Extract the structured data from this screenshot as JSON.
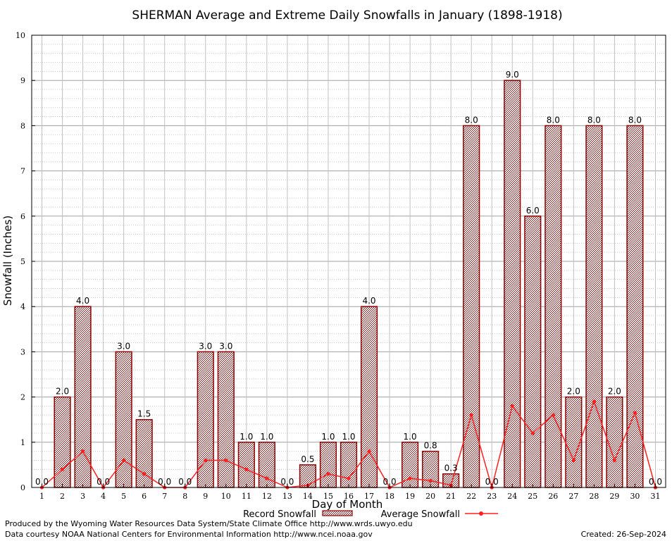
{
  "chart_data": {
    "type": "bar",
    "title": "SHERMAN Average and Extreme Daily Snowfalls in January (1898-1918)",
    "xlabel": "Day of Month",
    "ylabel": "Snowfall (Inches)",
    "ylim": [
      0,
      10
    ],
    "yticks": [
      "0",
      "1",
      "2",
      "3",
      "4",
      "5",
      "6",
      "7",
      "8",
      "9",
      "10"
    ],
    "categories": [
      "1",
      "2",
      "3",
      "4",
      "5",
      "6",
      "7",
      "8",
      "9",
      "10",
      "11",
      "12",
      "13",
      "14",
      "15",
      "16",
      "17",
      "18",
      "19",
      "20",
      "21",
      "22",
      "23",
      "24",
      "25",
      "26",
      "27",
      "28",
      "29",
      "30",
      "31"
    ],
    "series": [
      {
        "name": "Record Snowfall",
        "kind": "bar",
        "color": "#8b0000",
        "values": [
          0.0,
          2.0,
          4.0,
          0.0,
          3.0,
          1.5,
          0.0,
          0.0,
          3.0,
          3.0,
          1.0,
          1.0,
          0.0,
          0.5,
          1.0,
          1.0,
          4.0,
          0.0,
          1.0,
          0.8,
          0.3,
          8.0,
          0.0,
          9.0,
          6.0,
          8.0,
          2.0,
          8.0,
          2.0,
          8.0,
          0.0
        ],
        "labels": [
          "0.0",
          "2.0",
          "4.0",
          "0.0",
          "3.0",
          "1.5",
          "0.0",
          "0.0",
          "3.0",
          "3.0",
          "1.0",
          "1.0",
          "0.0",
          "0.5",
          "1.0",
          "1.0",
          "4.0",
          "0.0",
          "1.0",
          "0.8",
          "0.3",
          "8.0",
          "0.0",
          "9.0",
          "6.0",
          "8.0",
          "2.0",
          "8.0",
          "2.0",
          "8.0",
          "0.0"
        ]
      },
      {
        "name": "Average Snowfall",
        "kind": "line",
        "color": "#ff2020",
        "values": [
          0.0,
          0.4,
          0.8,
          0.0,
          0.6,
          0.3,
          0.0,
          0.0,
          0.6,
          0.6,
          0.4,
          0.2,
          0.0,
          0.05,
          0.3,
          0.2,
          0.8,
          0.0,
          0.2,
          0.15,
          0.05,
          1.6,
          0.0,
          1.8,
          1.2,
          1.6,
          0.6,
          1.9,
          0.6,
          1.65,
          0.0
        ]
      }
    ],
    "grid": true,
    "legend_position": "bottom"
  },
  "footer": {
    "produced_by": "Produced by the Wyoming Water Resources Data System/State Climate Office http://www.wrds.uwyo.edu",
    "courtesy": "Data courtesy NOAA National Centers for Environmental Information http://www.ncei.noaa.gov",
    "created": "Created: 26-Sep-2024"
  }
}
